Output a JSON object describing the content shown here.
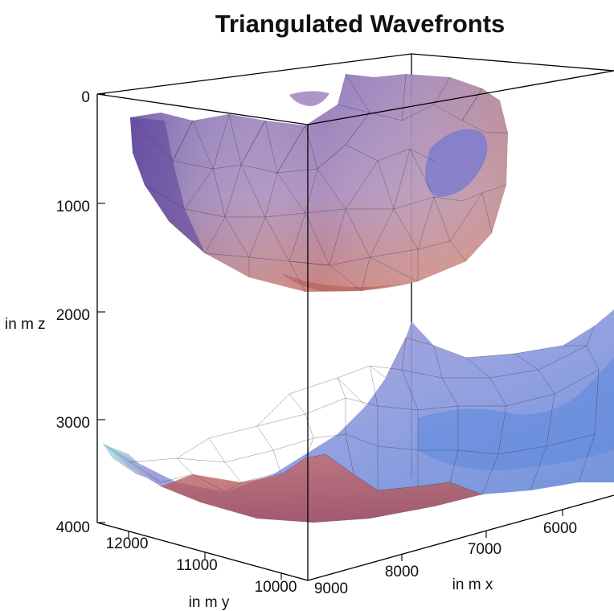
{
  "chart_data": {
    "type": "surface3d",
    "title": "Triangulated Wavefronts",
    "z_axis": {
      "label": "in m z",
      "ticks": [
        "0",
        "1000",
        "2000",
        "3000",
        "4000"
      ],
      "range": [
        0,
        4000
      ],
      "inverted": true
    },
    "y_axis": {
      "label": "in m y",
      "ticks": [
        "12000",
        "11000",
        "10000"
      ],
      "range": [
        9800,
        12300
      ]
    },
    "x_axis": {
      "label": "in m x",
      "ticks": [
        "9000",
        "8000",
        "7000",
        "6000"
      ],
      "range": [
        5300,
        9000
      ]
    },
    "surfaces": [
      {
        "name": "",
        "shape": "hemispherical bowl",
        "z_range": [
          200,
          1800
        ]
      },
      {
        "name": "",
        "shape": "saddle sheet",
        "z_range": [
          2000,
          3900
        ]
      }
    ],
    "colors": {
      "upper_surface": "#9b7fb7",
      "lower_surface": "#8f8cc8",
      "warm_tone": "#c9706a",
      "cool_tone": "#6e9be0"
    },
    "grid": false
  }
}
